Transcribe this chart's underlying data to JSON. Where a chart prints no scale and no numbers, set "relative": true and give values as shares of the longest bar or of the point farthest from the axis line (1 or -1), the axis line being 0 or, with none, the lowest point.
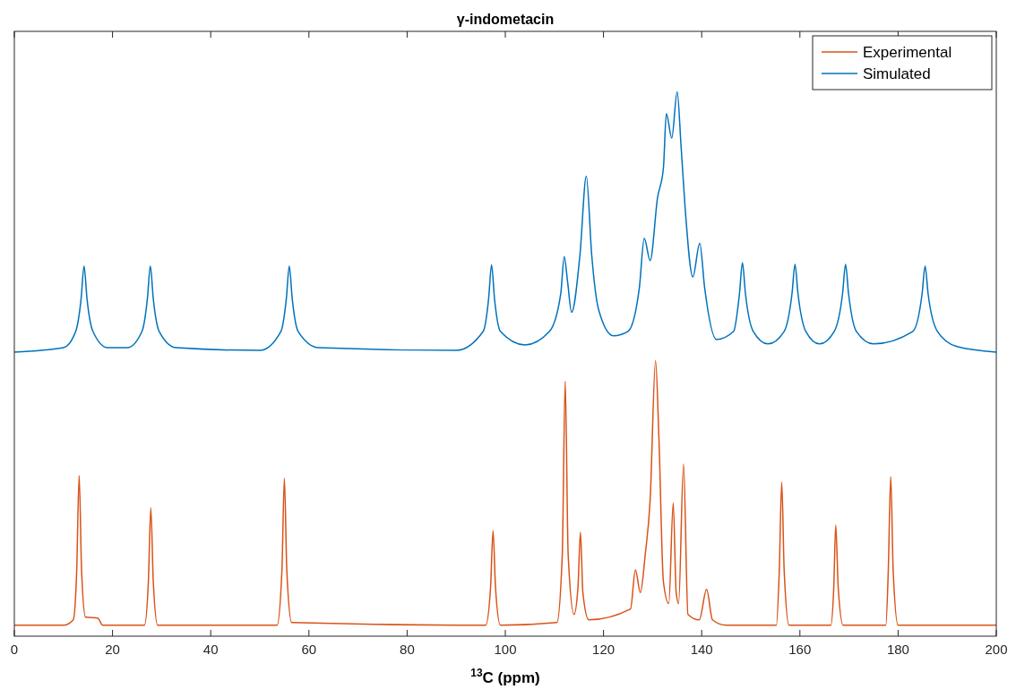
{
  "chart_data": {
    "type": "line",
    "title": "γ-indometacin",
    "xlabel": "$^{13}$C (ppm)",
    "relative": true,
    "xlim": [
      0,
      200
    ],
    "xticks": [
      0,
      20,
      40,
      60,
      80,
      100,
      120,
      140,
      160,
      180,
      200
    ],
    "legend": "top right",
    "grid": false,
    "line_style": "solid",
    "series": [
      {
        "name": "Experimental",
        "color": "#d95319",
        "x": [
          0,
          10,
          12,
          12.7,
          13.2,
          13.7,
          14.5,
          17,
          18,
          26.5,
          27.3,
          27.8,
          28.3,
          29.2,
          53.5,
          54.5,
          55,
          55.5,
          56.5,
          96,
          97,
          97.5,
          98,
          99,
          110.5,
          111.6,
          112.2,
          112.8,
          114,
          114.8,
          115.3,
          115.8,
          117,
          125.5,
          126.5,
          127.5,
          128.5,
          129.5,
          130.6,
          131.3,
          132.2,
          133.3,
          134.2,
          134.8,
          135.3,
          136.3,
          137.2,
          139.5,
          141,
          142.2,
          145,
          155.2,
          155.8,
          156.3,
          156.8,
          157.8,
          166.3,
          166.9,
          167.3,
          167.8,
          168.8,
          177.5,
          178,
          178.5,
          179,
          180,
          200
        ],
        "values": [
          0.02,
          0.02,
          0.03,
          0.12,
          0.295,
          0.12,
          0.035,
          0.033,
          0.02,
          0.02,
          0.1,
          0.236,
          0.1,
          0.02,
          0.02,
          0.12,
          0.29,
          0.12,
          0.025,
          0.02,
          0.09,
          0.194,
          0.09,
          0.02,
          0.025,
          0.15,
          0.468,
          0.15,
          0.04,
          0.09,
          0.191,
          0.08,
          0.03,
          0.05,
          0.122,
          0.08,
          0.15,
          0.25,
          0.506,
          0.36,
          0.1,
          0.06,
          0.245,
          0.08,
          0.06,
          0.316,
          0.04,
          0.03,
          0.086,
          0.03,
          0.02,
          0.02,
          0.12,
          0.283,
          0.12,
          0.02,
          0.02,
          0.09,
          0.204,
          0.09,
          0.02,
          0.02,
          0.12,
          0.293,
          0.12,
          0.02,
          0.02
        ]
      },
      {
        "name": "Simulated",
        "color": "#0072bd",
        "x": [
          0,
          10,
          12.5,
          13.6,
          14.2,
          14.8,
          16,
          19,
          23,
          26,
          27.1,
          27.7,
          28.3,
          29.5,
          33,
          50,
          54.3,
          55.4,
          56,
          56.6,
          57.8,
          62,
          90,
          95.5,
          96.6,
          97.2,
          97.8,
          99,
          104,
          109,
          111.3,
          112,
          112.7,
          113.5,
          115.2,
          116.5,
          117.6,
          119,
          122,
          125,
          127.3,
          128.3,
          129.5,
          131,
          132.2,
          132.8,
          133.9,
          135,
          135.8,
          136.6,
          138.2,
          139.6,
          140.6,
          143,
          146.5,
          147.7,
          148.3,
          148.9,
          150.5,
          153.5,
          156.8,
          158.4,
          159,
          159.6,
          161.2,
          164,
          167,
          168.7,
          169.3,
          169.9,
          171.5,
          175,
          183,
          184.9,
          185.5,
          186.1,
          188,
          192,
          200
        ],
        "values": [
          0.522,
          0.53,
          0.56,
          0.62,
          0.68,
          0.62,
          0.56,
          0.53,
          0.53,
          0.56,
          0.62,
          0.68,
          0.62,
          0.56,
          0.53,
          0.525,
          0.56,
          0.62,
          0.68,
          0.62,
          0.56,
          0.53,
          0.525,
          0.56,
          0.62,
          0.682,
          0.62,
          0.56,
          0.535,
          0.56,
          0.63,
          0.697,
          0.65,
          0.595,
          0.7,
          0.845,
          0.7,
          0.6,
          0.552,
          0.56,
          0.64,
          0.731,
          0.69,
          0.805,
          0.86,
          0.96,
          0.915,
          1.0,
          0.9,
          0.79,
          0.66,
          0.722,
          0.64,
          0.545,
          0.56,
          0.63,
          0.686,
          0.63,
          0.56,
          0.537,
          0.56,
          0.63,
          0.683,
          0.63,
          0.56,
          0.537,
          0.56,
          0.63,
          0.683,
          0.63,
          0.56,
          0.537,
          0.56,
          0.63,
          0.68,
          0.63,
          0.56,
          0.532,
          0.522
        ]
      }
    ]
  }
}
